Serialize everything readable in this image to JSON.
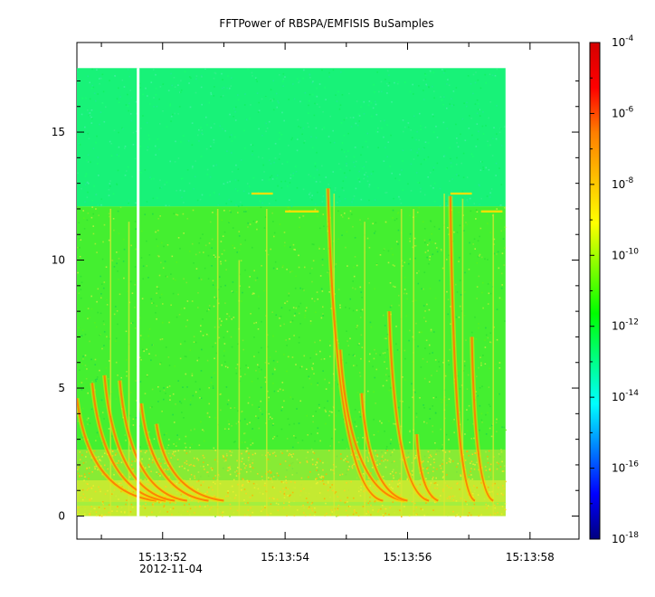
{
  "chart_data": {
    "type": "heatmap",
    "title": "FFTPower of RBSPA/EMFISIS  BuSamples",
    "xlabel": "",
    "ylabel": "",
    "x_axis": {
      "ticks": [
        {
          "value": 52,
          "label": "15:13:52"
        },
        {
          "value": 54,
          "label": "15:13:54"
        },
        {
          "value": 56,
          "label": "15:13:56"
        },
        {
          "value": 58,
          "label": "15:13:58"
        }
      ],
      "minor_ticks": [
        51,
        53,
        55,
        57
      ],
      "date_label": "2012-11-04",
      "range": [
        50.6,
        58.8
      ],
      "data_range": [
        50.6,
        57.6
      ]
    },
    "y_axis": {
      "ticks": [
        0,
        5,
        10,
        15
      ],
      "range": [
        -0.9,
        18.5
      ],
      "data_range": [
        0,
        17.5
      ]
    },
    "colorbar": {
      "scale": "log",
      "range": [
        1e-18,
        0.0001
      ],
      "tick_exponents": [
        -4,
        -6,
        -8,
        -10,
        -12,
        -14,
        -16,
        -18
      ],
      "colormap": [
        "#00007f",
        "#0000ff",
        "#007fff",
        "#00ffff",
        "#00ff80",
        "#00ff00",
        "#7fff00",
        "#ffff00",
        "#ffbf00",
        "#ff7f00",
        "#ff0000",
        "#d40000"
      ]
    },
    "regions": {
      "upper_band": {
        "freq_range": [
          12.1,
          17.5
        ],
        "color": "#18f278"
      },
      "lower_band": {
        "freq_range": [
          0,
          12.1
        ],
        "color": "#44ef30"
      },
      "low_freq_enhancement": {
        "freq_range": [
          0,
          2.6
        ],
        "color": "#d8ea30"
      }
    },
    "data_gap_time": 51.6,
    "chorus_bursts": [
      {
        "t_top": 50.6,
        "t_bottom": 51.9,
        "f_top": 4.6
      },
      {
        "t_top": 50.85,
        "t_bottom": 52.05,
        "f_top": 5.2
      },
      {
        "t_top": 51.05,
        "t_bottom": 52.2,
        "f_top": 5.5
      },
      {
        "t_top": 51.3,
        "t_bottom": 52.4,
        "f_top": 5.3
      },
      {
        "t_top": 51.65,
        "t_bottom": 52.75,
        "f_top": 4.4
      },
      {
        "t_top": 51.9,
        "t_bottom": 53.0,
        "f_top": 3.6
      },
      {
        "t_top": 54.7,
        "t_bottom": 55.6,
        "f_top": 12.8
      },
      {
        "t_top": 54.9,
        "t_bottom": 55.95,
        "f_top": 6.5
      },
      {
        "t_top": 55.25,
        "t_bottom": 56.0,
        "f_top": 4.8
      },
      {
        "t_top": 55.7,
        "t_bottom": 56.35,
        "f_top": 8.0
      },
      {
        "t_top": 56.15,
        "t_bottom": 56.5,
        "f_top": 3.2
      },
      {
        "t_top": 56.7,
        "t_bottom": 57.1,
        "f_top": 12.5
      },
      {
        "t_top": 57.05,
        "t_bottom": 57.4,
        "f_top": 7.0
      }
    ],
    "vertical_streaks": [
      {
        "t": 51.15,
        "f_top": 12.0
      },
      {
        "t": 51.45,
        "f_top": 11.5
      },
      {
        "t": 52.9,
        "f_top": 12.0
      },
      {
        "t": 53.25,
        "f_top": 10.0
      },
      {
        "t": 53.7,
        "f_top": 12.0
      },
      {
        "t": 54.8,
        "f_top": 12.6
      },
      {
        "t": 55.3,
        "f_top": 11.5
      },
      {
        "t": 55.9,
        "f_top": 12.0
      },
      {
        "t": 56.1,
        "f_top": 12.0
      },
      {
        "t": 56.6,
        "f_top": 12.6
      },
      {
        "t": 56.9,
        "f_top": 12.4
      },
      {
        "t": 57.4,
        "f_top": 11.8
      }
    ],
    "horizontal_lines": [
      {
        "t_start": 54.0,
        "t_end": 54.55,
        "f": 11.9
      },
      {
        "t_start": 57.2,
        "t_end": 57.55,
        "f": 11.9
      },
      {
        "t_start": 53.45,
        "t_end": 53.8,
        "f": 12.6
      },
      {
        "t_start": 56.7,
        "t_end": 57.05,
        "f": 12.6
      }
    ]
  }
}
